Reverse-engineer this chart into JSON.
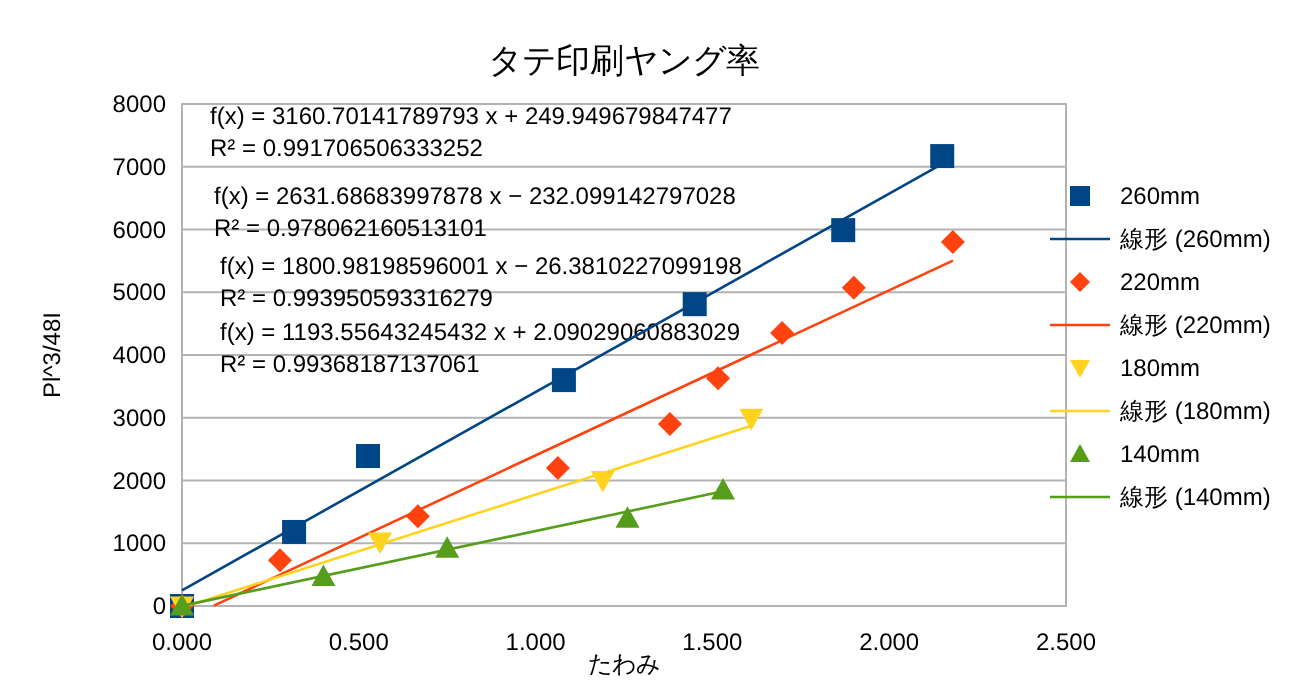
{
  "chart_data": {
    "type": "scatter",
    "title": "タテ印刷ヤング率",
    "xlabel": "たわみ",
    "ylabel": "Pl^3/48I",
    "xlim": [
      0,
      2.5
    ],
    "xticks": [
      {
        "value": 0,
        "label": "0.000"
      },
      {
        "value": 0.5,
        "label": "0.500"
      },
      {
        "value": 1,
        "label": "1.000"
      },
      {
        "value": 1.5,
        "label": "1.500"
      },
      {
        "value": 2,
        "label": "2.000"
      },
      {
        "value": 2.5,
        "label": "2.500"
      }
    ],
    "ylim": [
      0,
      8000
    ],
    "yticks": [
      0,
      1000,
      2000,
      3000,
      4000,
      5000,
      6000,
      7000,
      8000
    ],
    "grid": "y",
    "legend": "right",
    "series": [
      {
        "name": "260mm",
        "color": "#004586",
        "marker": "square",
        "x": [
          0,
          0.317,
          0.526,
          1.08,
          1.45,
          1.87,
          2.15
        ],
        "values": [
          0,
          1180,
          2390,
          3600,
          4810,
          5990,
          7170
        ]
      },
      {
        "name": "線形  (260mm)",
        "type": "line",
        "marker": "none",
        "color": "#004586",
        "x": [
          0,
          2.15
        ],
        "values": [
          250,
          7045
        ]
      },
      {
        "name": "220mm",
        "color": "#ff420e",
        "marker": "diamond",
        "x": [
          0,
          0.277,
          0.667,
          1.063,
          1.38,
          1.516,
          1.697,
          1.9,
          2.18
        ],
        "values": [
          0,
          730,
          1430,
          2200,
          2900,
          3630,
          4350,
          5070,
          5800
        ]
      },
      {
        "name": "線形  (220mm)",
        "type": "line",
        "marker": "none",
        "color": "#ff420e",
        "x": [
          0.09,
          2.18
        ],
        "values": [
          5,
          5505
        ]
      },
      {
        "name": "180mm",
        "color": "#ffd320",
        "marker": "triangle-down",
        "x": [
          0,
          0.56,
          1.19,
          1.61
        ],
        "values": [
          0,
          1020,
          2000,
          2990
        ]
      },
      {
        "name": "線形  (180mm)",
        "type": "line",
        "marker": "none",
        "color": "#ffd320",
        "x": [
          0.02,
          1.61
        ],
        "values": [
          10,
          2874
        ]
      },
      {
        "name": "140mm",
        "color": "#579d1c",
        "marker": "triangle",
        "x": [
          0,
          0.4,
          0.75,
          1.26,
          1.53
        ],
        "values": [
          0,
          470,
          920,
          1400,
          1850
        ]
      },
      {
        "name": "線形  (140mm)",
        "type": "line",
        "marker": "none",
        "color": "#579d1c",
        "x": [
          0,
          1.53
        ],
        "values": [
          2,
          1828
        ]
      }
    ],
    "annotations": [
      "f(x) = 3160.70141789793 x + 249.949679847477",
      "R² = 0.991706506333252",
      "f(x) = 2631.68683997878 x − 232.099142797028",
      "R² = 0.978062160513101",
      "f(x) = 1800.98198596001 x − 26.3810227099198",
      "R² = 0.993950593316279",
      "f(x) = 1193.55643245432 x + 2.09029060883029",
      "R² = 0.99368187137061"
    ]
  }
}
